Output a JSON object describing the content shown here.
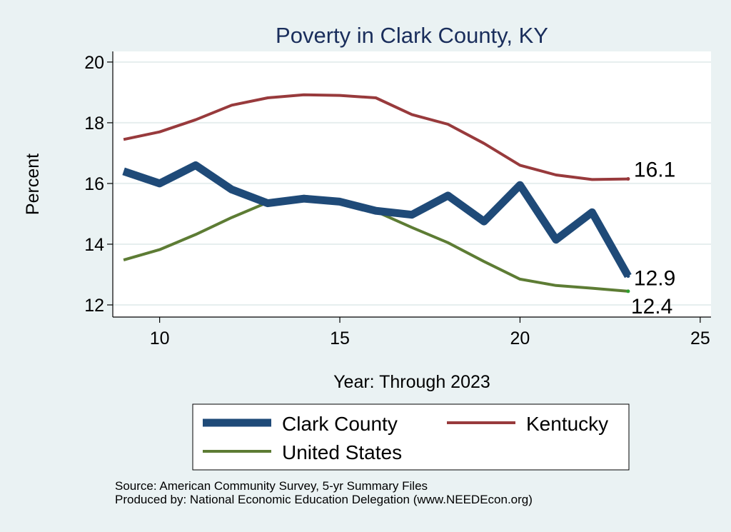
{
  "chart_data": {
    "type": "line",
    "title": "Poverty in Clark County, KY",
    "xlabel": "Year: Through 2023",
    "ylabel": "Percent",
    "xlim": [
      8.7,
      25.3
    ],
    "ylim": [
      11.6,
      20.35
    ],
    "xticks": [
      10,
      15,
      20,
      25
    ],
    "yticks": [
      12,
      14,
      16,
      18,
      20
    ],
    "grid": true,
    "x": [
      9,
      10,
      11,
      12,
      13,
      14,
      15,
      16,
      17,
      18,
      19,
      20,
      21,
      22,
      23
    ],
    "series": [
      {
        "name": "Clark County",
        "color": "#1f4a78",
        "values": [
          16.4,
          16.0,
          16.6,
          15.8,
          15.35,
          15.5,
          15.4,
          15.1,
          14.97,
          15.6,
          14.75,
          15.95,
          14.15,
          15.05,
          12.95
        ],
        "end_label": "12.9"
      },
      {
        "name": "Kentucky",
        "color": "#983a3c",
        "values": [
          17.45,
          17.7,
          18.1,
          18.58,
          18.82,
          18.92,
          18.9,
          18.82,
          18.27,
          17.95,
          17.32,
          16.6,
          16.28,
          16.13,
          16.15
        ],
        "end_label": "16.1"
      },
      {
        "name": "United States",
        "color": "#5d7c34",
        "values": [
          13.48,
          13.82,
          14.32,
          14.88,
          15.38,
          15.58,
          15.45,
          15.08,
          14.55,
          14.05,
          13.43,
          12.85,
          12.64,
          12.55,
          12.45
        ],
        "end_label": "12.4"
      }
    ],
    "legend": {
      "position": "bottom",
      "entries": [
        "Clark County",
        "Kentucky",
        "United States"
      ]
    }
  },
  "notes": {
    "source": "Source: American Community Survey, 5-yr Summary Files",
    "produced_by": "Produced by: National Economic Education Delegation (www.NEEDEcon.org)"
  }
}
